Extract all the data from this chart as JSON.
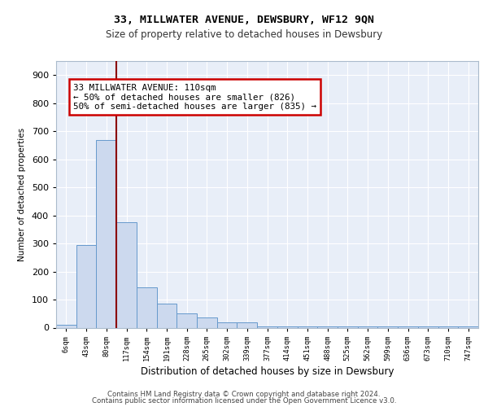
{
  "title1": "33, MILLWATER AVENUE, DEWSBURY, WF12 9QN",
  "title2": "Size of property relative to detached houses in Dewsbury",
  "xlabel": "Distribution of detached houses by size in Dewsbury",
  "ylabel": "Number of detached properties",
  "bar_labels": [
    "6sqm",
    "43sqm",
    "80sqm",
    "117sqm",
    "154sqm",
    "191sqm",
    "228sqm",
    "265sqm",
    "302sqm",
    "339sqm",
    "377sqm",
    "414sqm",
    "451sqm",
    "488sqm",
    "525sqm",
    "562sqm",
    "599sqm",
    "636sqm",
    "673sqm",
    "710sqm",
    "747sqm"
  ],
  "bar_values": [
    10,
    295,
    670,
    375,
    145,
    85,
    50,
    35,
    20,
    20,
    5,
    5,
    5,
    5,
    5,
    3,
    3,
    3,
    3,
    3,
    3
  ],
  "bar_color": "#ccd9ee",
  "bar_edge_color": "#6699cc",
  "vline_x": 2.5,
  "vline_color": "#8b0000",
  "annotation_text": "33 MILLWATER AVENUE: 110sqm\n← 50% of detached houses are smaller (826)\n50% of semi-detached houses are larger (835) →",
  "annotation_box_color": "white",
  "annotation_box_edge": "#cc0000",
  "ylim": [
    0,
    950
  ],
  "yticks": [
    0,
    100,
    200,
    300,
    400,
    500,
    600,
    700,
    800,
    900
  ],
  "background_color": "#e8eef8",
  "grid_color": "#c8d4e8",
  "footer1": "Contains HM Land Registry data © Crown copyright and database right 2024.",
  "footer2": "Contains public sector information licensed under the Open Government Licence v3.0."
}
